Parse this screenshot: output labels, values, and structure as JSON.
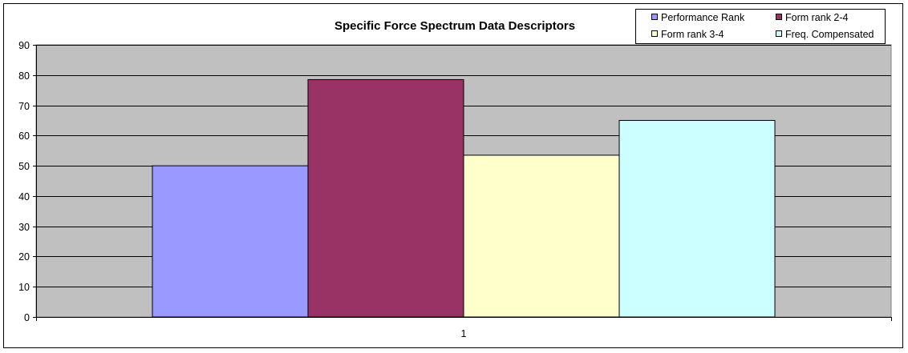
{
  "chart_data": {
    "type": "bar",
    "title": "Specific Force Spectrum Data Descriptors",
    "xlabel": "",
    "ylabel": "",
    "categories": [
      "1"
    ],
    "ylim": [
      0,
      90
    ],
    "yticks": [
      "0",
      "10",
      "20",
      "30",
      "40",
      "50",
      "60",
      "70",
      "80",
      "90"
    ],
    "grid": true,
    "legend_position": "top-right",
    "plot_background": "#c0c0c0",
    "series": [
      {
        "name": "Performance Rank",
        "values": [
          50
        ],
        "color": "#9999ff"
      },
      {
        "name": "Form rank 2-4",
        "values": [
          78.5
        ],
        "color": "#993366"
      },
      {
        "name": "Form rank 3-4",
        "values": [
          53.5
        ],
        "color": "#ffffcc"
      },
      {
        "name": "Freq. Compensated",
        "values": [
          65
        ],
        "color": "#ccffff"
      }
    ]
  }
}
